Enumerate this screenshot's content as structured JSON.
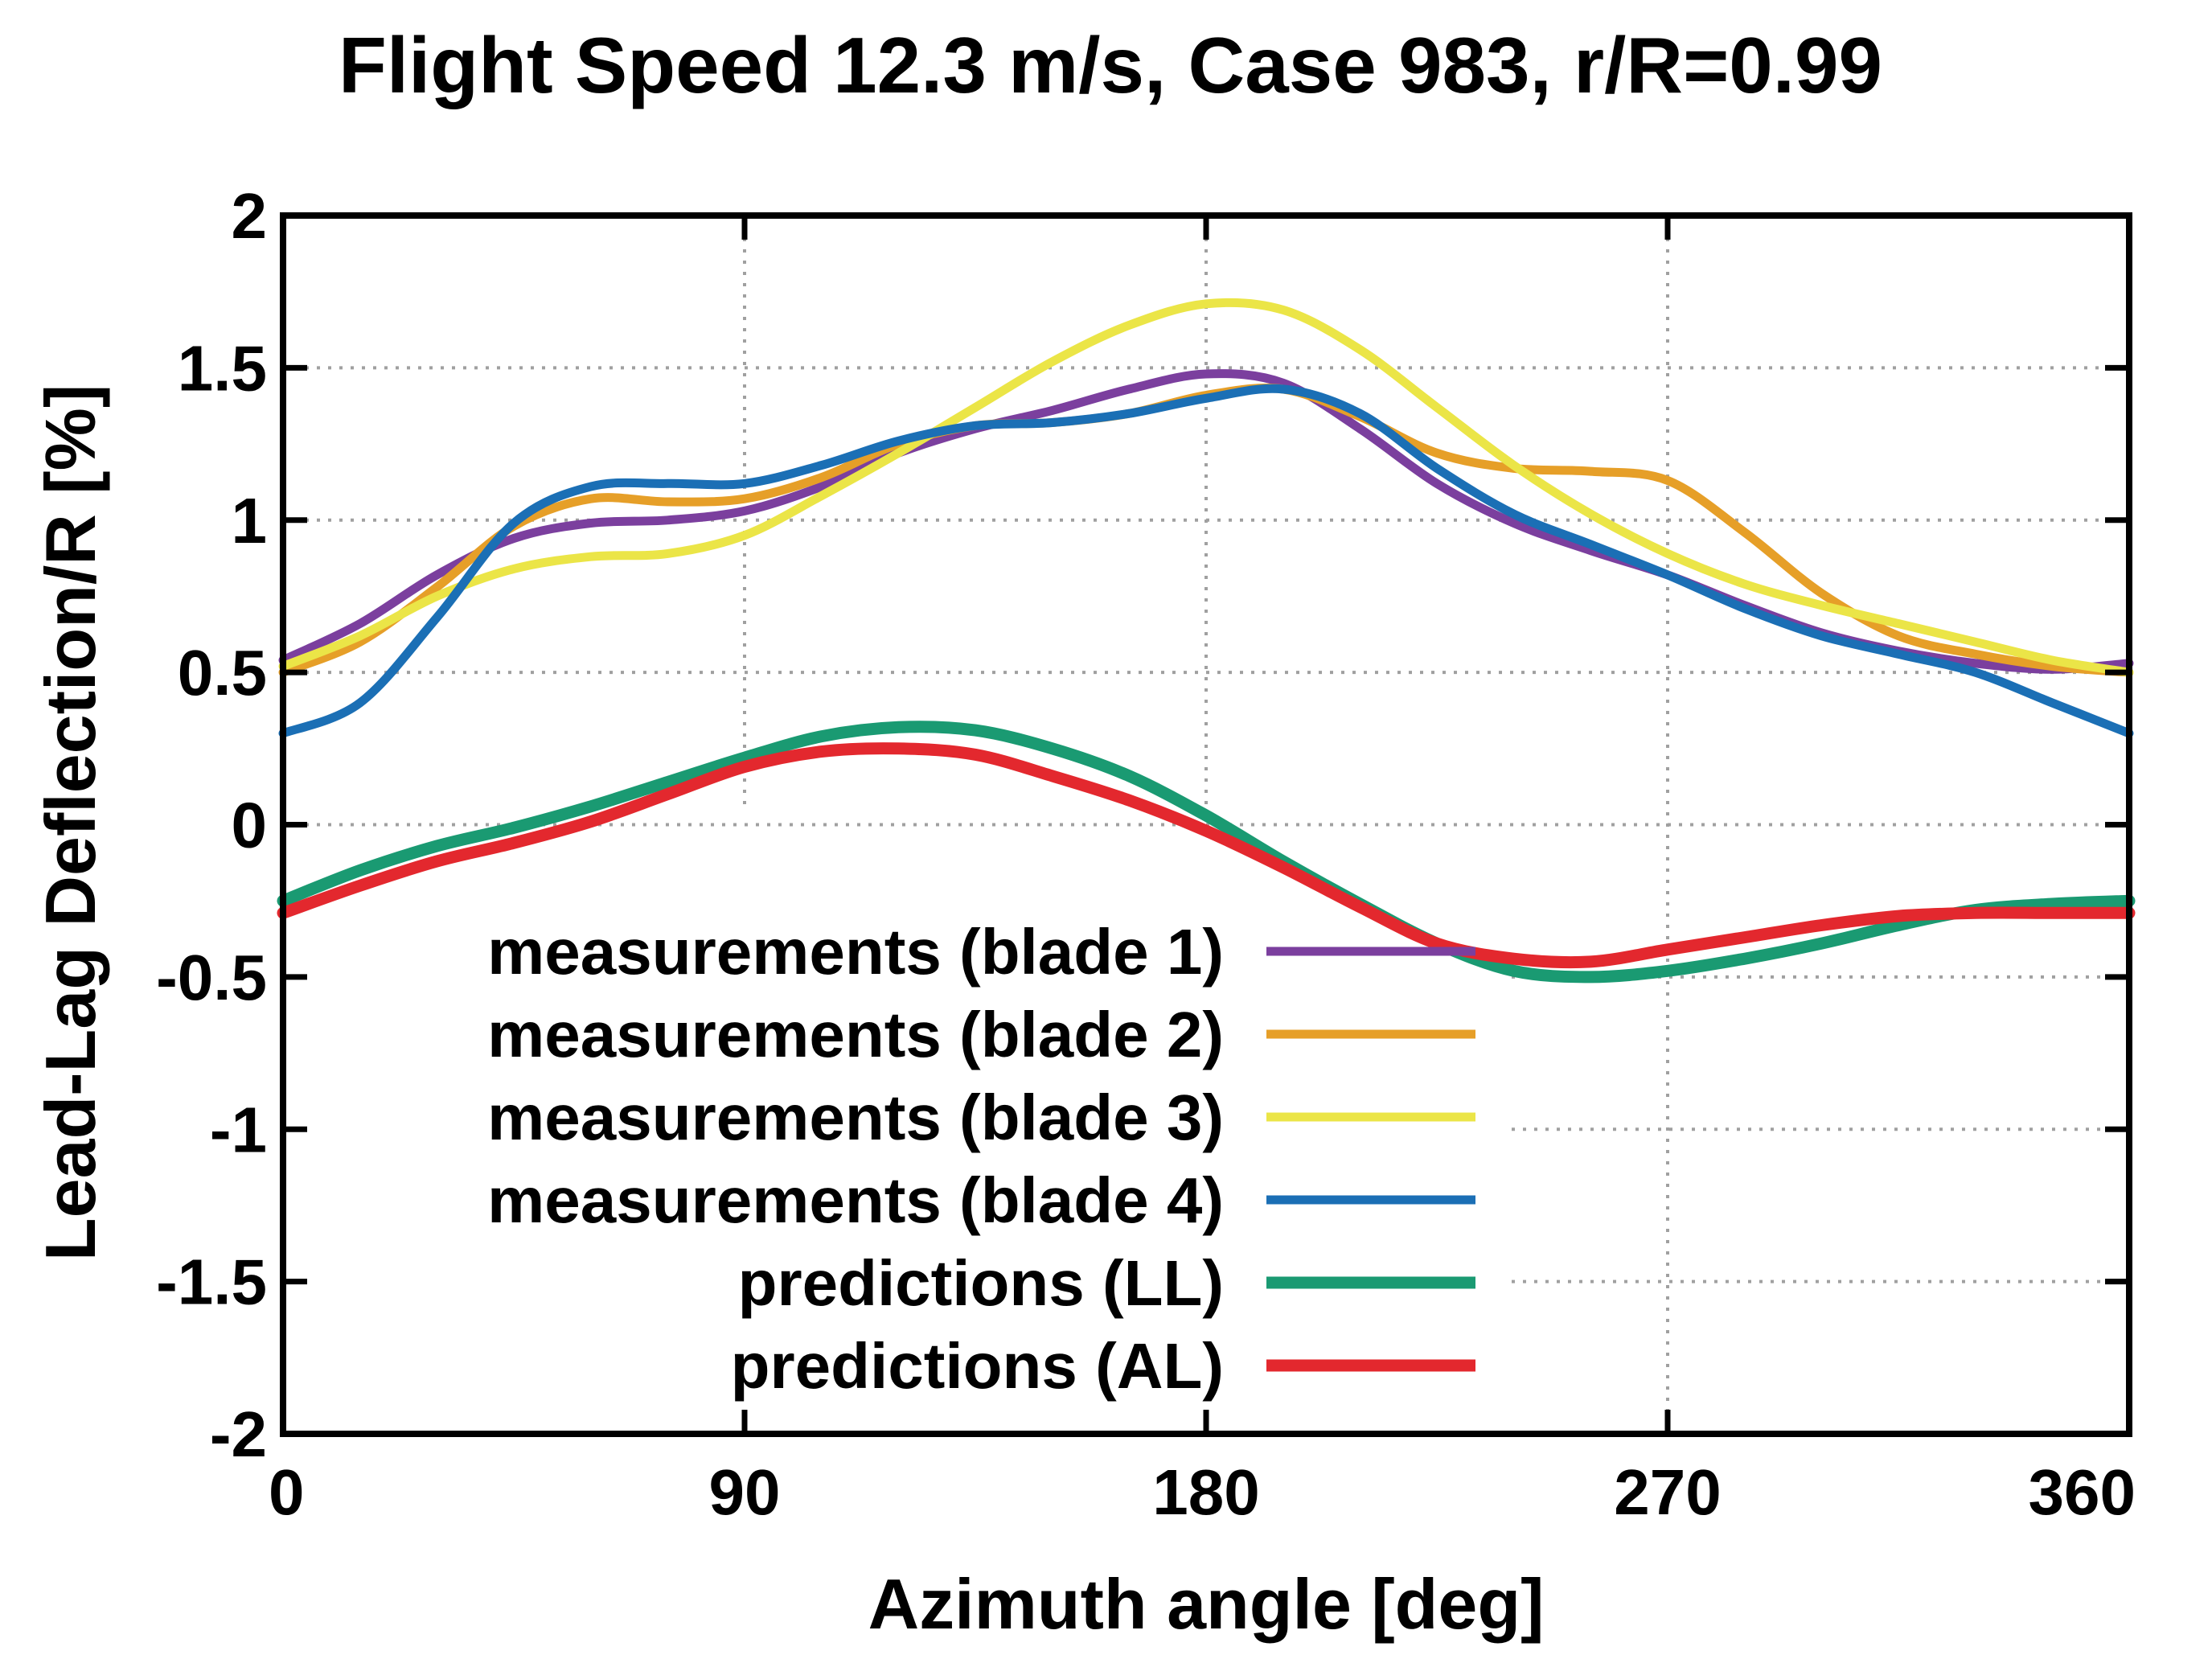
{
  "chart_data": {
    "type": "line",
    "title": "Flight Speed 12.3 m/s, Case 983, r/R=0.99",
    "xlabel": "Azimuth angle [deg]",
    "ylabel": "Lead-Lag Deflection/R [%]",
    "xlim": [
      0,
      360
    ],
    "ylim": [
      -2,
      2
    ],
    "grid": true,
    "legend_position": "bottom-left",
    "xticks": [
      0,
      90,
      180,
      270,
      360
    ],
    "xtick_labels": [
      "0",
      "90",
      "180",
      "270",
      "360"
    ],
    "yticks": [
      2,
      1.5,
      1,
      0.5,
      0,
      -0.5,
      -1,
      -1.5,
      -2
    ],
    "ytick_labels": [
      "2",
      "1.5",
      "1",
      "0.5",
      "0",
      "-0.5",
      "-1",
      "-1.5",
      "-2"
    ],
    "series": [
      {
        "name": "measurements (blade 1)",
        "color": "#7B3F9E",
        "x": [
          0,
          15,
          30,
          45,
          60,
          75,
          90,
          105,
          120,
          135,
          150,
          165,
          180,
          195,
          210,
          225,
          240,
          255,
          270,
          285,
          300,
          315,
          330,
          345,
          360
        ],
        "y": [
          0.54,
          0.66,
          0.82,
          0.94,
          0.99,
          1.0,
          1.03,
          1.11,
          1.22,
          1.3,
          1.36,
          1.43,
          1.48,
          1.45,
          1.3,
          1.12,
          0.99,
          0.9,
          0.82,
          0.72,
          0.63,
          0.57,
          0.53,
          0.51,
          0.53
        ]
      },
      {
        "name": "measurements (blade 2)",
        "color": "#E69F28",
        "x": [
          0,
          15,
          30,
          45,
          60,
          75,
          90,
          105,
          120,
          135,
          150,
          165,
          180,
          195,
          210,
          225,
          240,
          255,
          270,
          285,
          300,
          315,
          330,
          345,
          360
        ],
        "y": [
          0.5,
          0.6,
          0.78,
          0.98,
          1.07,
          1.06,
          1.07,
          1.14,
          1.25,
          1.31,
          1.32,
          1.35,
          1.41,
          1.43,
          1.34,
          1.22,
          1.17,
          1.16,
          1.13,
          0.96,
          0.76,
          0.62,
          0.56,
          0.52,
          0.5
        ]
      },
      {
        "name": "measurements (blade 3)",
        "color": "#EBE547",
        "x": [
          0,
          15,
          30,
          45,
          60,
          75,
          90,
          105,
          120,
          135,
          150,
          165,
          180,
          195,
          210,
          225,
          240,
          255,
          270,
          285,
          300,
          315,
          330,
          345,
          360
        ],
        "y": [
          0.52,
          0.62,
          0.75,
          0.84,
          0.88,
          0.89,
          0.95,
          1.08,
          1.22,
          1.37,
          1.52,
          1.64,
          1.71,
          1.69,
          1.56,
          1.37,
          1.18,
          1.02,
          0.89,
          0.79,
          0.72,
          0.66,
          0.6,
          0.54,
          0.5
        ]
      },
      {
        "name": "measurements (blade 4)",
        "color": "#1B6FB5",
        "x": [
          0,
          15,
          30,
          45,
          60,
          75,
          90,
          105,
          120,
          135,
          150,
          165,
          180,
          195,
          210,
          225,
          240,
          255,
          270,
          285,
          300,
          315,
          330,
          345,
          360
        ],
        "y": [
          0.3,
          0.4,
          0.68,
          0.99,
          1.11,
          1.12,
          1.12,
          1.18,
          1.26,
          1.31,
          1.32,
          1.35,
          1.4,
          1.43,
          1.35,
          1.17,
          1.02,
          0.92,
          0.82,
          0.71,
          0.62,
          0.56,
          0.5,
          0.4,
          0.3
        ]
      },
      {
        "name": "predictions (LL)",
        "color": "#1A9A72",
        "x": [
          0,
          15,
          30,
          45,
          60,
          75,
          90,
          105,
          120,
          135,
          150,
          165,
          180,
          195,
          210,
          225,
          240,
          255,
          270,
          285,
          300,
          315,
          330,
          345,
          360
        ],
        "y": [
          -0.25,
          -0.15,
          -0.07,
          -0.01,
          0.06,
          0.14,
          0.22,
          0.29,
          0.32,
          0.31,
          0.25,
          0.16,
          0.03,
          -0.12,
          -0.26,
          -0.39,
          -0.48,
          -0.5,
          -0.48,
          -0.44,
          -0.39,
          -0.33,
          -0.28,
          -0.26,
          -0.25
        ]
      },
      {
        "name": "predictions (AL)",
        "color": "#E3282E",
        "x": [
          0,
          15,
          30,
          45,
          60,
          75,
          90,
          105,
          120,
          135,
          150,
          165,
          180,
          195,
          210,
          225,
          240,
          255,
          270,
          285,
          300,
          315,
          330,
          345,
          360
        ],
        "y": [
          -0.29,
          -0.2,
          -0.12,
          -0.06,
          0.01,
          0.1,
          0.19,
          0.24,
          0.25,
          0.23,
          0.16,
          0.08,
          -0.02,
          -0.14,
          -0.27,
          -0.39,
          -0.44,
          -0.45,
          -0.41,
          -0.37,
          -0.33,
          -0.3,
          -0.29,
          -0.29,
          -0.29
        ]
      }
    ]
  }
}
